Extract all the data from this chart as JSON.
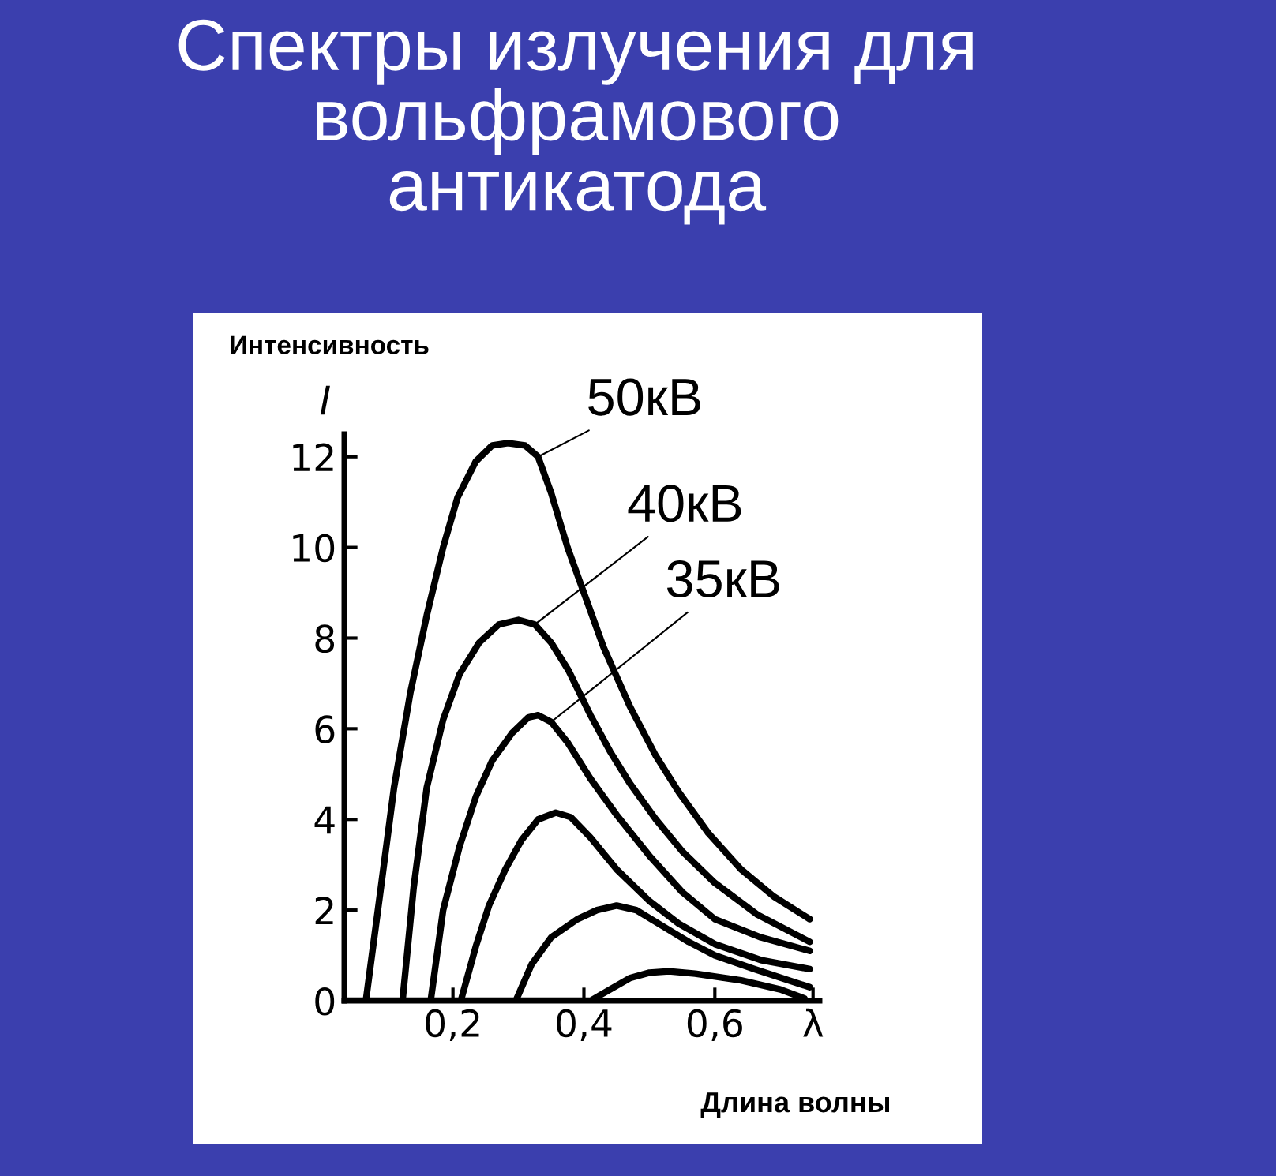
{
  "chart_data": {
    "type": "line",
    "title": "Спектры излучения для\nвольфрамового\nантикатода",
    "xlabel": "Длина волны",
    "ylabel": "I",
    "xlim": [
      0.034,
      0.76
    ],
    "ylim": [
      0,
      12.5
    ],
    "xticks": [
      {
        "value": 0.2,
        "label": "0,2"
      },
      {
        "value": 0.4,
        "label": "0,4"
      },
      {
        "value": 0.6,
        "label": "0,6"
      },
      {
        "value": 0.75,
        "label": "λ"
      }
    ],
    "yticks": [
      0,
      2,
      4,
      6,
      8,
      10,
      12
    ],
    "grid": false,
    "legend": false,
    "marker": "none",
    "line_style": "solid",
    "series": [
      {
        "color": "#000000",
        "x": [
          0.067,
          0.09,
          0.11,
          0.135,
          0.16,
          0.185,
          0.207,
          0.235,
          0.26,
          0.284,
          0.31,
          0.33,
          0.35,
          0.375,
          0.4,
          0.43,
          0.47,
          0.51,
          0.545,
          0.59,
          0.64,
          0.69,
          0.745
        ],
        "values": [
          0,
          2.5,
          4.7,
          6.8,
          8.5,
          10,
          11.1,
          11.9,
          12.25,
          12.3,
          12.25,
          12,
          11.2,
          10,
          9,
          7.8,
          6.5,
          5.4,
          4.6,
          3.7,
          2.9,
          2.3,
          1.8
        ]
      },
      {
        "color": "#000000",
        "x": [
          0.034,
          0.123,
          0.14,
          0.16,
          0.185,
          0.21,
          0.24,
          0.27,
          0.3,
          0.325,
          0.35,
          0.376,
          0.41,
          0.44,
          0.47,
          0.51,
          0.55,
          0.6,
          0.665,
          0.745
        ],
        "values": [
          0,
          0,
          2.5,
          4.7,
          6.2,
          7.2,
          7.9,
          8.3,
          8.4,
          8.3,
          7.9,
          7.3,
          6.3,
          5.5,
          4.8,
          4,
          3.3,
          2.6,
          1.9,
          1.3
        ]
      },
      {
        "color": "#000000",
        "x": [
          0.123,
          0.166,
          0.185,
          0.21,
          0.235,
          0.26,
          0.29,
          0.315,
          0.33,
          0.35,
          0.375,
          0.41,
          0.45,
          0.5,
          0.55,
          0.6,
          0.67,
          0.745
        ],
        "values": [
          0,
          0,
          2,
          3.4,
          4.5,
          5.3,
          5.9,
          6.25,
          6.3,
          6.15,
          5.7,
          4.9,
          4.1,
          3.2,
          2.4,
          1.8,
          1.4,
          1.1
        ]
      },
      {
        "color": "#000000",
        "x": [
          0.166,
          0.212,
          0.235,
          0.255,
          0.28,
          0.305,
          0.33,
          0.357,
          0.38,
          0.41,
          0.45,
          0.5,
          0.545,
          0.6,
          0.67,
          0.745
        ],
        "values": [
          0,
          0,
          1.2,
          2.1,
          2.9,
          3.55,
          4,
          4.15,
          4.05,
          3.6,
          2.9,
          2.2,
          1.7,
          1.25,
          0.9,
          0.7
        ]
      },
      {
        "color": "#000000",
        "x": [
          0.212,
          0.296,
          0.32,
          0.35,
          0.39,
          0.42,
          0.45,
          0.48,
          0.52,
          0.56,
          0.6,
          0.66,
          0.745
        ],
        "values": [
          0,
          0,
          0.8,
          1.4,
          1.8,
          2.0,
          2.1,
          2.0,
          1.65,
          1.3,
          1.0,
          0.7,
          0.3
        ]
      },
      {
        "color": "#000000",
        "x": [
          0.296,
          0.41,
          0.44,
          0.47,
          0.5,
          0.53,
          0.57,
          0.64,
          0.7,
          0.737
        ],
        "values": [
          0,
          0,
          0.25,
          0.5,
          0.62,
          0.65,
          0.6,
          0.45,
          0.25,
          0.05
        ]
      }
    ],
    "annotations": [
      "Интенсивность",
      {
        "text": "50кВ",
        "x": 0.33,
        "y": 12
      },
      {
        "text": "40кВ",
        "x": 0.325,
        "y": 8.3
      },
      {
        "text": "35кВ",
        "x": 0.35,
        "y": 6.15
      }
    ]
  }
}
